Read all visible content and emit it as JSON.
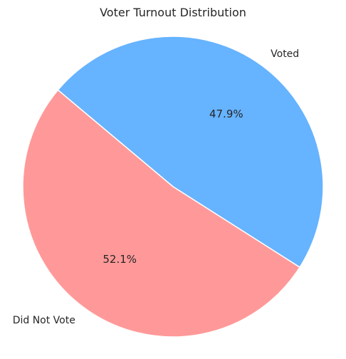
{
  "chart_data": {
    "type": "pie",
    "title": "Voter Turnout Distribution",
    "slices": [
      {
        "label": "Voted",
        "value": 47.9,
        "pct_label": "47.9%",
        "color": "#66b3ff"
      },
      {
        "label": "Did Not Vote",
        "value": 52.1,
        "pct_label": "52.1%",
        "color": "#ff9999"
      }
    ],
    "slice_edge_color": "#ffffff"
  }
}
